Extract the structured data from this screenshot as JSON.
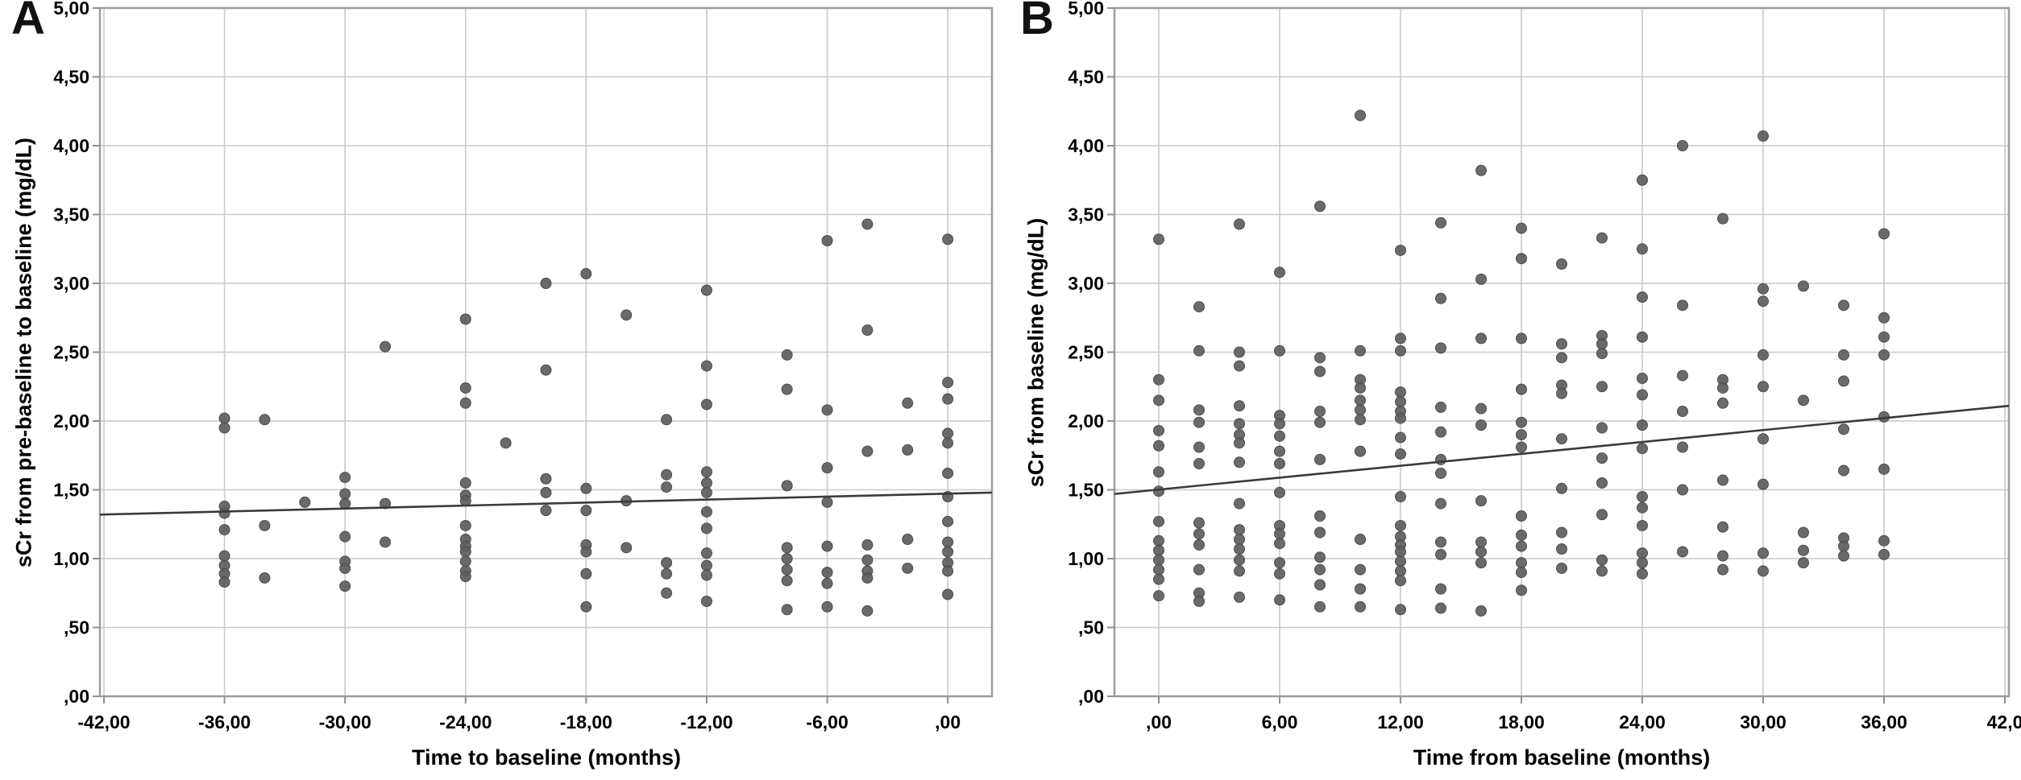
{
  "figure": {
    "background": "#ffffff",
    "dot_color": "#5d5d5d",
    "dot_stroke": "#4c4c4c",
    "dot_radius": 6.5,
    "grid_color": "#c9c9c9",
    "frame_color": "#9d9d9d",
    "tick_color": "#8f8f8f",
    "fit_line_color": "#3a3a3a"
  },
  "chart_data": [
    {
      "type": "scatter",
      "panel_label": "A",
      "xlabel": "Time to baseline (months)",
      "ylabel": "sCr from pre-baseline to baseline (mg/dL)",
      "xlim": [
        -42.2,
        2.2
      ],
      "ylim": [
        0,
        5
      ],
      "grid": true,
      "x_ticks": [
        {
          "value": -42,
          "label": "-42,00"
        },
        {
          "value": -36,
          "label": "-36,00"
        },
        {
          "value": -30,
          "label": "-30,00"
        },
        {
          "value": -24,
          "label": "-24,00"
        },
        {
          "value": -18,
          "label": "-18,00"
        },
        {
          "value": -12,
          "label": "-12,00"
        },
        {
          "value": -6,
          "label": "-6,00"
        },
        {
          "value": 0,
          "label": ",00"
        }
      ],
      "y_ticks": [
        {
          "value": 5,
          "label": "5,00"
        },
        {
          "value": 4.5,
          "label": "4,50"
        },
        {
          "value": 4,
          "label": "4,00"
        },
        {
          "value": 3.5,
          "label": "3,50"
        },
        {
          "value": 3,
          "label": "3,00"
        },
        {
          "value": 2.5,
          "label": "2,50"
        },
        {
          "value": 2,
          "label": "2,00"
        },
        {
          "value": 1.5,
          "label": "1,50"
        },
        {
          "value": 1,
          "label": "1,00"
        },
        {
          "value": 0.5,
          "label": ",50"
        },
        {
          "value": 0,
          "label": ",00"
        }
      ],
      "fit_line": {
        "x1": -42.2,
        "y1": 1.32,
        "x2": 2.2,
        "y2": 1.48
      },
      "points": [
        [
          -36,
          2.02
        ],
        [
          -36,
          1.95
        ],
        [
          -36,
          1.38
        ],
        [
          -36,
          1.33
        ],
        [
          -36,
          1.21
        ],
        [
          -36,
          1.02
        ],
        [
          -36,
          0.95
        ],
        [
          -36,
          0.89
        ],
        [
          -36,
          0.83
        ],
        [
          -34,
          2.01
        ],
        [
          -34,
          1.24
        ],
        [
          -34,
          0.86
        ],
        [
          -32,
          1.41
        ],
        [
          -30,
          1.59
        ],
        [
          -30,
          1.47
        ],
        [
          -30,
          1.4
        ],
        [
          -30,
          1.16
        ],
        [
          -30,
          0.98
        ],
        [
          -30,
          0.93
        ],
        [
          -30,
          0.8
        ],
        [
          -28,
          2.54
        ],
        [
          -28,
          1.4
        ],
        [
          -28,
          1.12
        ],
        [
          -24,
          2.74
        ],
        [
          -24,
          2.24
        ],
        [
          -24,
          2.13
        ],
        [
          -24,
          1.55
        ],
        [
          -24,
          1.46
        ],
        [
          -24,
          1.42
        ],
        [
          -24,
          1.24
        ],
        [
          -24,
          1.14
        ],
        [
          -24,
          1.09
        ],
        [
          -24,
          1.05
        ],
        [
          -24,
          0.98
        ],
        [
          -24,
          0.91
        ],
        [
          -24,
          0.87
        ],
        [
          -22,
          1.84
        ],
        [
          -20,
          3.0
        ],
        [
          -20,
          2.37
        ],
        [
          -20,
          1.58
        ],
        [
          -20,
          1.48
        ],
        [
          -20,
          1.35
        ],
        [
          -18,
          3.07
        ],
        [
          -18,
          1.51
        ],
        [
          -18,
          1.35
        ],
        [
          -18,
          1.1
        ],
        [
          -18,
          1.05
        ],
        [
          -18,
          0.89
        ],
        [
          -18,
          0.65
        ],
        [
          -16,
          2.77
        ],
        [
          -16,
          1.42
        ],
        [
          -16,
          1.08
        ],
        [
          -14,
          2.01
        ],
        [
          -14,
          1.61
        ],
        [
          -14,
          1.52
        ],
        [
          -14,
          0.97
        ],
        [
          -14,
          0.89
        ],
        [
          -14,
          0.75
        ],
        [
          -12,
          2.95
        ],
        [
          -12,
          2.4
        ],
        [
          -12,
          2.12
        ],
        [
          -12,
          1.63
        ],
        [
          -12,
          1.55
        ],
        [
          -12,
          1.48
        ],
        [
          -12,
          1.34
        ],
        [
          -12,
          1.22
        ],
        [
          -12,
          1.04
        ],
        [
          -12,
          0.95
        ],
        [
          -12,
          0.88
        ],
        [
          -12,
          0.69
        ],
        [
          -8,
          2.48
        ],
        [
          -8,
          2.23
        ],
        [
          -8,
          1.53
        ],
        [
          -8,
          1.08
        ],
        [
          -8,
          1.0
        ],
        [
          -8,
          0.92
        ],
        [
          -8,
          0.84
        ],
        [
          -8,
          0.63
        ],
        [
          -6,
          3.31
        ],
        [
          -6,
          2.08
        ],
        [
          -6,
          1.66
        ],
        [
          -6,
          1.41
        ],
        [
          -6,
          1.09
        ],
        [
          -6,
          0.9
        ],
        [
          -6,
          0.82
        ],
        [
          -6,
          0.65
        ],
        [
          -4,
          3.43
        ],
        [
          -4,
          2.66
        ],
        [
          -4,
          1.78
        ],
        [
          -4,
          1.1
        ],
        [
          -4,
          0.99
        ],
        [
          -4,
          0.91
        ],
        [
          -4,
          0.86
        ],
        [
          -4,
          0.62
        ],
        [
          -2,
          2.13
        ],
        [
          -2,
          1.79
        ],
        [
          -2,
          1.14
        ],
        [
          -2,
          0.93
        ],
        [
          0,
          3.32
        ],
        [
          0,
          2.28
        ],
        [
          0,
          2.16
        ],
        [
          0,
          1.91
        ],
        [
          0,
          1.84
        ],
        [
          0,
          1.62
        ],
        [
          0,
          1.45
        ],
        [
          0,
          1.27
        ],
        [
          0,
          1.12
        ],
        [
          0,
          1.05
        ],
        [
          0,
          0.97
        ],
        [
          0,
          0.91
        ],
        [
          0,
          0.74
        ]
      ]
    },
    {
      "type": "scatter",
      "panel_label": "B",
      "xlabel": "Time from baseline (months)",
      "ylabel": "sCr from baseline (mg/dL)",
      "xlim": [
        -2.2,
        42.2
      ],
      "ylim": [
        0,
        5
      ],
      "grid": true,
      "x_ticks": [
        {
          "value": 0,
          "label": ",00"
        },
        {
          "value": 6,
          "label": "6,00"
        },
        {
          "value": 12,
          "label": "12,00"
        },
        {
          "value": 18,
          "label": "18,00"
        },
        {
          "value": 24,
          "label": "24,00"
        },
        {
          "value": 30,
          "label": "30,00"
        },
        {
          "value": 36,
          "label": "36,00"
        },
        {
          "value": 42,
          "label": "42,0"
        }
      ],
      "y_ticks": [
        {
          "value": 5,
          "label": "5,00"
        },
        {
          "value": 4.5,
          "label": "4,50"
        },
        {
          "value": 4,
          "label": "4,00"
        },
        {
          "value": 3.5,
          "label": "3,50"
        },
        {
          "value": 3,
          "label": "3,00"
        },
        {
          "value": 2.5,
          "label": "2,50"
        },
        {
          "value": 2,
          "label": "2,00"
        },
        {
          "value": 1.5,
          "label": "1,50"
        },
        {
          "value": 1,
          "label": "1,00"
        },
        {
          "value": 0.5,
          "label": ",50"
        },
        {
          "value": 0,
          "label": ",00"
        }
      ],
      "fit_line": {
        "x1": -2.2,
        "y1": 1.47,
        "x2": 42.2,
        "y2": 2.11
      },
      "points": [
        [
          0,
          3.32
        ],
        [
          0,
          2.3
        ],
        [
          0,
          2.15
        ],
        [
          0,
          1.93
        ],
        [
          0,
          1.82
        ],
        [
          0,
          1.63
        ],
        [
          0,
          1.49
        ],
        [
          0,
          1.27
        ],
        [
          0,
          1.13
        ],
        [
          0,
          1.06
        ],
        [
          0,
          0.99
        ],
        [
          0,
          0.92
        ],
        [
          0,
          0.85
        ],
        [
          0,
          0.73
        ],
        [
          2,
          2.83
        ],
        [
          2,
          2.51
        ],
        [
          2,
          2.08
        ],
        [
          2,
          1.99
        ],
        [
          2,
          1.81
        ],
        [
          2,
          1.69
        ],
        [
          2,
          1.26
        ],
        [
          2,
          1.18
        ],
        [
          2,
          1.1
        ],
        [
          2,
          0.92
        ],
        [
          2,
          0.75
        ],
        [
          2,
          0.69
        ],
        [
          4,
          3.43
        ],
        [
          4,
          2.5
        ],
        [
          4,
          2.4
        ],
        [
          4,
          2.11
        ],
        [
          4,
          1.98
        ],
        [
          4,
          1.9
        ],
        [
          4,
          1.84
        ],
        [
          4,
          1.7
        ],
        [
          4,
          1.4
        ],
        [
          4,
          1.21
        ],
        [
          4,
          1.14
        ],
        [
          4,
          1.07
        ],
        [
          4,
          0.99
        ],
        [
          4,
          0.91
        ],
        [
          4,
          0.72
        ],
        [
          6,
          3.08
        ],
        [
          6,
          2.51
        ],
        [
          6,
          2.04
        ],
        [
          6,
          1.98
        ],
        [
          6,
          1.89
        ],
        [
          6,
          1.78
        ],
        [
          6,
          1.69
        ],
        [
          6,
          1.48
        ],
        [
          6,
          1.24
        ],
        [
          6,
          1.18
        ],
        [
          6,
          1.11
        ],
        [
          6,
          0.97
        ],
        [
          6,
          0.89
        ],
        [
          6,
          0.7
        ],
        [
          8,
          3.56
        ],
        [
          8,
          2.46
        ],
        [
          8,
          2.36
        ],
        [
          8,
          2.07
        ],
        [
          8,
          1.99
        ],
        [
          8,
          1.72
        ],
        [
          8,
          1.31
        ],
        [
          8,
          1.19
        ],
        [
          8,
          1.01
        ],
        [
          8,
          0.92
        ],
        [
          8,
          0.81
        ],
        [
          8,
          0.65
        ],
        [
          10,
          4.22
        ],
        [
          10,
          2.51
        ],
        [
          10,
          2.3
        ],
        [
          10,
          2.24
        ],
        [
          10,
          2.15
        ],
        [
          10,
          2.08
        ],
        [
          10,
          2.01
        ],
        [
          10,
          1.78
        ],
        [
          10,
          1.14
        ],
        [
          10,
          0.92
        ],
        [
          10,
          0.78
        ],
        [
          10,
          0.65
        ],
        [
          12,
          3.24
        ],
        [
          12,
          2.6
        ],
        [
          12,
          2.51
        ],
        [
          12,
          2.21
        ],
        [
          12,
          2.14
        ],
        [
          12,
          2.07
        ],
        [
          12,
          2.02
        ],
        [
          12,
          1.88
        ],
        [
          12,
          1.76
        ],
        [
          12,
          1.45
        ],
        [
          12,
          1.24
        ],
        [
          12,
          1.16
        ],
        [
          12,
          1.1
        ],
        [
          12,
          1.05
        ],
        [
          12,
          0.98
        ],
        [
          12,
          0.91
        ],
        [
          12,
          0.84
        ],
        [
          12,
          0.63
        ],
        [
          14,
          3.44
        ],
        [
          14,
          2.89
        ],
        [
          14,
          2.53
        ],
        [
          14,
          2.1
        ],
        [
          14,
          1.92
        ],
        [
          14,
          1.72
        ],
        [
          14,
          1.62
        ],
        [
          14,
          1.4
        ],
        [
          14,
          1.12
        ],
        [
          14,
          1.03
        ],
        [
          14,
          0.78
        ],
        [
          14,
          0.64
        ],
        [
          16,
          3.82
        ],
        [
          16,
          3.03
        ],
        [
          16,
          2.6
        ],
        [
          16,
          2.09
        ],
        [
          16,
          1.97
        ],
        [
          16,
          1.42
        ],
        [
          16,
          1.12
        ],
        [
          16,
          1.05
        ],
        [
          16,
          0.97
        ],
        [
          16,
          0.62
        ],
        [
          18,
          3.4
        ],
        [
          18,
          3.18
        ],
        [
          18,
          2.6
        ],
        [
          18,
          2.23
        ],
        [
          18,
          1.99
        ],
        [
          18,
          1.9
        ],
        [
          18,
          1.81
        ],
        [
          18,
          1.31
        ],
        [
          18,
          1.17
        ],
        [
          18,
          1.09
        ],
        [
          18,
          0.97
        ],
        [
          18,
          0.9
        ],
        [
          18,
          0.77
        ],
        [
          20,
          3.14
        ],
        [
          20,
          2.56
        ],
        [
          20,
          2.46
        ],
        [
          20,
          2.26
        ],
        [
          20,
          2.2
        ],
        [
          20,
          1.87
        ],
        [
          20,
          1.51
        ],
        [
          20,
          1.19
        ],
        [
          20,
          1.07
        ],
        [
          20,
          0.93
        ],
        [
          22,
          3.33
        ],
        [
          22,
          2.62
        ],
        [
          22,
          2.56
        ],
        [
          22,
          2.49
        ],
        [
          22,
          2.25
        ],
        [
          22,
          1.95
        ],
        [
          22,
          1.73
        ],
        [
          22,
          1.55
        ],
        [
          22,
          1.32
        ],
        [
          22,
          0.99
        ],
        [
          22,
          0.91
        ],
        [
          24,
          3.75
        ],
        [
          24,
          3.25
        ],
        [
          24,
          2.9
        ],
        [
          24,
          2.61
        ],
        [
          24,
          2.31
        ],
        [
          24,
          2.19
        ],
        [
          24,
          1.97
        ],
        [
          24,
          1.8
        ],
        [
          24,
          1.45
        ],
        [
          24,
          1.37
        ],
        [
          24,
          1.24
        ],
        [
          24,
          1.04
        ],
        [
          24,
          0.97
        ],
        [
          24,
          0.89
        ],
        [
          26,
          4.0
        ],
        [
          26,
          2.84
        ],
        [
          26,
          2.33
        ],
        [
          26,
          2.07
        ],
        [
          26,
          1.81
        ],
        [
          26,
          1.5
        ],
        [
          26,
          1.05
        ],
        [
          28,
          3.47
        ],
        [
          28,
          2.3
        ],
        [
          28,
          2.24
        ],
        [
          28,
          2.13
        ],
        [
          28,
          1.57
        ],
        [
          28,
          1.23
        ],
        [
          28,
          1.02
        ],
        [
          28,
          0.92
        ],
        [
          30,
          4.07
        ],
        [
          30,
          2.96
        ],
        [
          30,
          2.87
        ],
        [
          30,
          2.48
        ],
        [
          30,
          2.25
        ],
        [
          30,
          1.87
        ],
        [
          30,
          1.54
        ],
        [
          30,
          1.04
        ],
        [
          30,
          0.91
        ],
        [
          32,
          2.98
        ],
        [
          32,
          2.15
        ],
        [
          32,
          1.19
        ],
        [
          32,
          1.06
        ],
        [
          32,
          0.97
        ],
        [
          34,
          2.84
        ],
        [
          34,
          2.48
        ],
        [
          34,
          2.29
        ],
        [
          34,
          1.94
        ],
        [
          34,
          1.64
        ],
        [
          34,
          1.15
        ],
        [
          34,
          1.09
        ],
        [
          34,
          1.02
        ],
        [
          36,
          3.36
        ],
        [
          36,
          2.75
        ],
        [
          36,
          2.61
        ],
        [
          36,
          2.48
        ],
        [
          36,
          2.03
        ],
        [
          36,
          1.65
        ],
        [
          36,
          1.13
        ],
        [
          36,
          1.03
        ]
      ]
    }
  ]
}
